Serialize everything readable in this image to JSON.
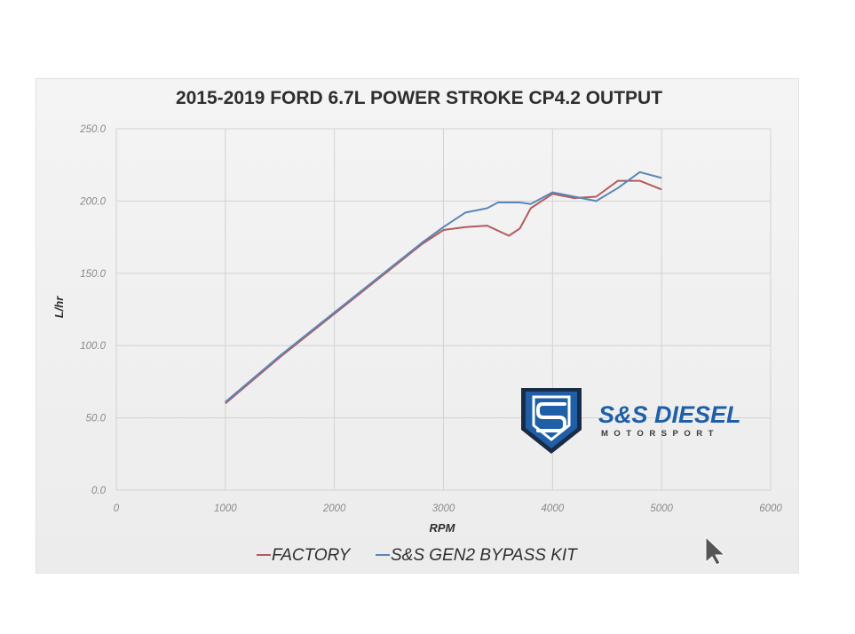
{
  "chart_data": {
    "type": "line",
    "title": "2015-2019 FORD 6.7L POWER STROKE CP4.2 OUTPUT",
    "xlabel": "RPM",
    "ylabel": "L/hr",
    "xlim": [
      0,
      6000
    ],
    "ylim": [
      0,
      250
    ],
    "x_ticks": [
      "0",
      "1000",
      "2000",
      "3000",
      "4000",
      "5000",
      "6000"
    ],
    "y_ticks": [
      "0.0",
      "50.0",
      "100.0",
      "150.0",
      "200.0",
      "250.0"
    ],
    "grid": true,
    "legend_position": "bottom",
    "series": [
      {
        "name": "FACTORY",
        "color": "#b45a60",
        "x": [
          1000,
          1500,
          2000,
          2500,
          2800,
          3000,
          3200,
          3400,
          3600,
          3700,
          3800,
          4000,
          4200,
          4400,
          4600,
          4800,
          5000
        ],
        "y": [
          60,
          92,
          122,
          152,
          170,
          180,
          182,
          183,
          176,
          181,
          195,
          205,
          202,
          203,
          214,
          214,
          208
        ]
      },
      {
        "name": "S&S GEN2 BYPASS KIT",
        "color": "#5a86b5",
        "x": [
          1000,
          1500,
          2000,
          2500,
          2800,
          3000,
          3200,
          3400,
          3500,
          3700,
          3800,
          4000,
          4200,
          4400,
          4600,
          4800,
          5000
        ],
        "y": [
          61,
          93,
          123,
          153,
          171,
          182,
          192,
          195,
          199,
          199,
          198,
          206,
          203,
          200,
          209,
          220,
          216
        ]
      }
    ]
  },
  "logo": {
    "name": "S&S DIESEL",
    "tagline": "MOTORSPORT",
    "colors": {
      "blue": "#1f5fa8",
      "dark": "#1a2b45"
    }
  }
}
